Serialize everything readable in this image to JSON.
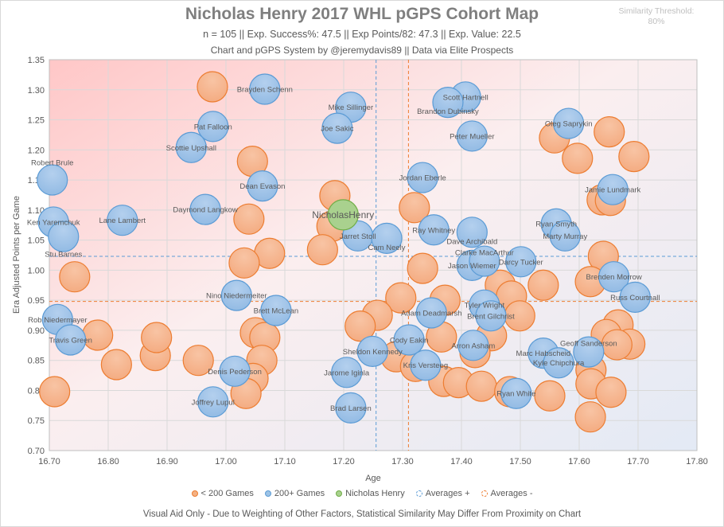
{
  "header": {
    "title": "Nicholas Henry 2017 WHL pGPS Cohort Map",
    "subtitle": "n = 105 || Exp. Success%: 47.5 || Exp Points/82: 47.3 || Exp. Value: 22.5",
    "credit": "Chart and pGPS System by @jeremydavis89  || Data via Elite Prospects",
    "threshold_label": "Similarity Threshold:",
    "threshold_value": "80%"
  },
  "footer": "Visual Aid Only - Due to Weighting of Other Factors, Statistical Similarity May Differ From Proximity on Chart",
  "colors": {
    "orange": "#f4b183",
    "orange_edge": "#ed7d31",
    "blue": "#9dc3e6",
    "blue_edge": "#5b9bd5",
    "green": "#a9d18e",
    "green_edge": "#70ad47"
  },
  "chart_data": {
    "type": "scatter",
    "title": "Nicholas Henry 2017 WHL pGPS Cohort Map",
    "xlabel": "Age",
    "ylabel": "Era Adjusted Points per Game",
    "xlim": [
      16.7,
      17.8
    ],
    "ylim": [
      0.7,
      1.35
    ],
    "xticks": [
      "16.70",
      "16.80",
      "16.90",
      "17.00",
      "17.10",
      "17.20",
      "17.30",
      "17.40",
      "17.50",
      "17.60",
      "17.70",
      "17.80"
    ],
    "yticks": [
      "0.70",
      "0.75",
      "0.80",
      "0.85",
      "0.90",
      "0.95",
      "1.00",
      "1.05",
      "1.10",
      "1.15",
      "1.20",
      "1.25",
      "1.30",
      "1.35"
    ],
    "grid": true,
    "legend_position": "bottom",
    "legend": [
      "< 200 Games",
      "200+ Games",
      "Nicholas Henry",
      "Averages +",
      "Averages -"
    ],
    "averages_plus": {
      "x": 17.255,
      "y": 1.023
    },
    "averages_minus": {
      "x": 17.31,
      "y": 0.948
    },
    "series": [
      {
        "name": "< 200 Games",
        "points": [
          [
            16.977,
            1.305
          ],
          [
            17.045,
            1.181
          ],
          [
            17.185,
            1.124
          ],
          [
            17.039,
            1.085
          ],
          [
            17.18,
            1.073
          ],
          [
            17.164,
            1.034
          ],
          [
            17.074,
            1.028
          ],
          [
            17.031,
            1.012
          ],
          [
            16.743,
            0.989
          ],
          [
            17.32,
            1.104
          ],
          [
            17.334,
            1.003
          ],
          [
            17.558,
            1.22
          ],
          [
            17.651,
            1.23
          ],
          [
            17.597,
            1.186
          ],
          [
            17.693,
            1.189
          ],
          [
            17.639,
            1.117
          ],
          [
            17.653,
            1.116
          ],
          [
            17.641,
            1.023
          ],
          [
            17.466,
            0.975
          ],
          [
            17.485,
            0.957
          ],
          [
            17.499,
            0.924
          ],
          [
            17.539,
            0.975
          ],
          [
            17.619,
            0.981
          ],
          [
            17.297,
            0.954
          ],
          [
            17.372,
            0.95
          ],
          [
            17.257,
            0.925
          ],
          [
            17.228,
            0.907
          ],
          [
            17.366,
            0.889
          ],
          [
            17.451,
            0.891
          ],
          [
            17.289,
            0.856
          ],
          [
            17.322,
            0.84
          ],
          [
            17.423,
            0.863
          ],
          [
            17.37,
            0.815
          ],
          [
            17.395,
            0.813
          ],
          [
            17.434,
            0.807
          ],
          [
            17.482,
            0.798
          ],
          [
            17.55,
            0.791
          ],
          [
            17.666,
            0.909
          ],
          [
            17.646,
            0.893
          ],
          [
            17.686,
            0.877
          ],
          [
            17.664,
            0.876
          ],
          [
            17.62,
            0.834
          ],
          [
            17.62,
            0.811
          ],
          [
            17.654,
            0.797
          ],
          [
            17.619,
            0.756
          ],
          [
            16.782,
            0.892
          ],
          [
            16.814,
            0.843
          ],
          [
            16.88,
            0.858
          ],
          [
            16.882,
            0.888
          ],
          [
            16.953,
            0.85
          ],
          [
            16.709,
            0.798
          ],
          [
            17.05,
            0.896
          ],
          [
            17.066,
            0.888
          ],
          [
            17.061,
            0.85
          ],
          [
            17.046,
            0.82
          ],
          [
            17.034,
            0.795
          ]
        ]
      },
      {
        "name": "200+ Games",
        "points": [
          {
            "label": "Brayden Schenn",
            "x": 17.066,
            "y": 1.301
          },
          {
            "label": "Mike Sillinger",
            "x": 17.212,
            "y": 1.271
          },
          {
            "label": "Joe Sakic",
            "x": 17.189,
            "y": 1.236
          },
          {
            "label": "Pat Falloon",
            "x": 16.978,
            "y": 1.239
          },
          {
            "label": "Scottie Upshall",
            "x": 16.941,
            "y": 1.204
          },
          {
            "label": "Robert Brule",
            "x": 16.705,
            "y": 1.15
          },
          {
            "label": "Dean Evason",
            "x": 17.062,
            "y": 1.14
          },
          {
            "label": "Daymond Langkow",
            "x": 16.965,
            "y": 1.101
          },
          {
            "label": "Ken Yaremchuk",
            "x": 16.707,
            "y": 1.08
          },
          {
            "label": "Lane Lambert",
            "x": 16.824,
            "y": 1.083
          },
          {
            "label": "Stu Barnes",
            "x": 16.724,
            "y": 1.056
          },
          {
            "label": "Jarret Stoll",
            "x": 17.224,
            "y": 1.057
          },
          {
            "label": "Cam Neely",
            "x": 17.273,
            "y": 1.053
          },
          {
            "label": "Scott Hartnell",
            "x": 17.407,
            "y": 1.288
          },
          {
            "label": "Brandon Dubinsky",
            "x": 17.377,
            "y": 1.279
          },
          {
            "label": "Peter Mueller",
            "x": 17.418,
            "y": 1.223
          },
          {
            "label": "Oleg Saprykin",
            "x": 17.582,
            "y": 1.244
          },
          {
            "label": "Jordan Eberle",
            "x": 17.334,
            "y": 1.154
          },
          {
            "label": "Jamie Lundmark",
            "x": 17.657,
            "y": 1.134
          },
          {
            "label": "Ray Whitney",
            "x": 17.353,
            "y": 1.067
          },
          {
            "label": "Dave Archibald",
            "x": 17.418,
            "y": 1.063
          },
          {
            "label": "Ryan Smyth",
            "x": 17.561,
            "y": 1.077
          },
          {
            "label": "Marty Murray",
            "x": 17.576,
            "y": 1.057
          },
          {
            "label": "Jason Wiemer",
            "x": 17.418,
            "y": 1.008
          },
          {
            "label": "Clarke MacArthur",
            "x": 17.439,
            "y": 1.015
          },
          {
            "label": "Darcy Tucker",
            "x": 17.501,
            "y": 1.014
          },
          {
            "label": "Brenden Morrow",
            "x": 17.659,
            "y": 0.989
          },
          {
            "label": "Russ Courtnall",
            "x": 17.695,
            "y": 0.955
          },
          {
            "label": "Nino Niedermeiter",
            "x": 17.018,
            "y": 0.958
          },
          {
            "label": "Brett McLean",
            "x": 17.085,
            "y": 0.933
          },
          {
            "label": "Rob Niedermayer",
            "x": 16.714,
            "y": 0.918
          },
          {
            "label": "Travis Green",
            "x": 16.736,
            "y": 0.884
          },
          {
            "label": "Tyler Wright",
            "x": 17.439,
            "y": 0.942
          },
          {
            "label": "Brent Gilchrist",
            "x": 17.45,
            "y": 0.924
          },
          {
            "label": "Adam Deadmarsh",
            "x": 17.349,
            "y": 0.929
          },
          {
            "label": "Cody Eakin",
            "x": 17.311,
            "y": 0.884
          },
          {
            "label": "Sheldon Kennedy",
            "x": 17.249,
            "y": 0.865
          },
          {
            "label": "Arron Asham",
            "x": 17.42,
            "y": 0.875
          },
          {
            "label": "Marc Habscheid",
            "x": 17.539,
            "y": 0.862
          },
          {
            "label": "Kyle Chipchura",
            "x": 17.565,
            "y": 0.846
          },
          {
            "label": "Geoff Sanderson",
            "x": 17.616,
            "y": 0.864
          },
          {
            "label": "Kris Versteeg",
            "x": 17.339,
            "y": 0.842
          },
          {
            "label": "Denis Pederson",
            "x": 17.015,
            "y": 0.832
          },
          {
            "label": "Jarome Iginla",
            "x": 17.205,
            "y": 0.83
          },
          {
            "label": "Ryan White",
            "x": 17.493,
            "y": 0.795
          },
          {
            "label": "Joffrey Lupul",
            "x": 16.978,
            "y": 0.781
          },
          {
            "label": "Brad Larsen",
            "x": 17.212,
            "y": 0.771
          }
        ]
      },
      {
        "name": "Nicholas Henry",
        "points": [
          {
            "label": "NicholasHenry",
            "x": 17.199,
            "y": 1.092
          }
        ]
      }
    ]
  }
}
